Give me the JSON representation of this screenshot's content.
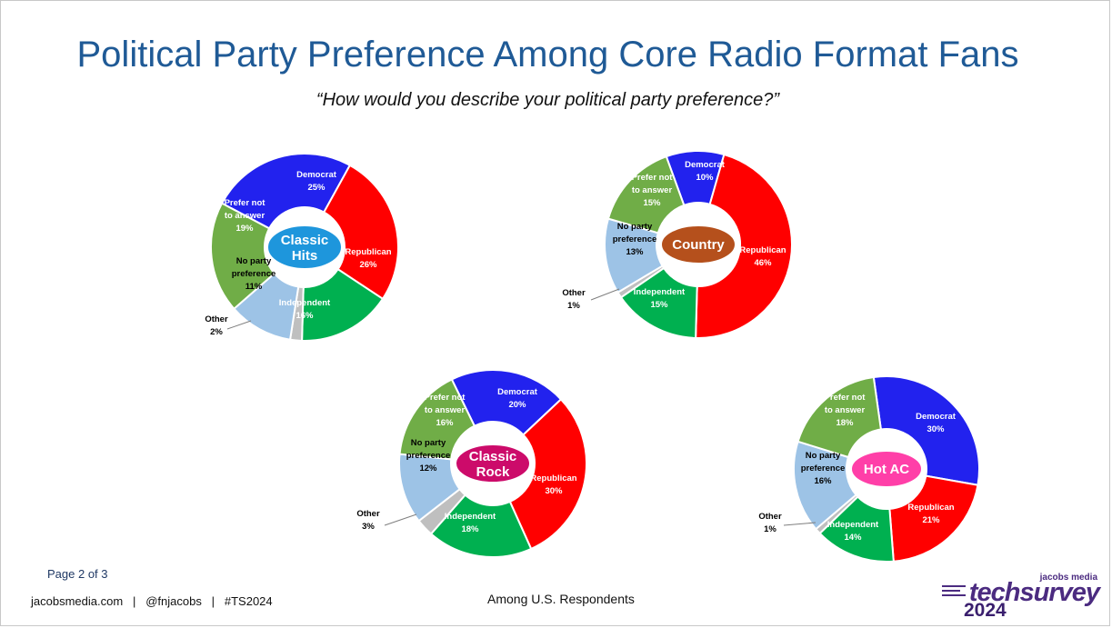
{
  "slide": {
    "title": "Political Party Preference Among Core Radio Format Fans",
    "subtitle": "“How would you describe your political party preference?”",
    "page_number": "Page 2 of 3",
    "footer_left": "jacobsmedia.com   |   @fnjacobs   |   #TS2024",
    "footer_center": "Among U.S. Respondents"
  },
  "logo": {
    "top_text": "jacobs media",
    "main_text": "techsurvey",
    "year_text": "2024"
  },
  "category_colors": {
    "Democrat": "#2222ee",
    "Republican": "#ff0000",
    "Independent": "#00b050",
    "Other": "#bfbfbf",
    "No party preference": "#9dc3e6",
    "Prefer not to answer": "#70ad47"
  },
  "chart_data": [
    {
      "type": "pie",
      "variant": "donut",
      "center_label": "Classic Hits",
      "center_color": "#1e96dc",
      "slices": [
        {
          "label": "Democrat",
          "value": 25,
          "pct_label": "25%"
        },
        {
          "label": "Republican",
          "value": 26,
          "pct_label": "26%"
        },
        {
          "label": "Independent",
          "value": 16,
          "pct_label": "16%"
        },
        {
          "label": "Other",
          "value": 2,
          "pct_label": "2%"
        },
        {
          "label": "No party preference",
          "value": 11,
          "pct_label": "11%"
        },
        {
          "label": "Prefer not to answer",
          "value": 19,
          "pct_label": "19%"
        }
      ]
    },
    {
      "type": "pie",
      "variant": "donut",
      "center_label": "Country",
      "center_color": "#b5501c",
      "slices": [
        {
          "label": "Democrat",
          "value": 10,
          "pct_label": "10%"
        },
        {
          "label": "Republican",
          "value": 46,
          "pct_label": "46%"
        },
        {
          "label": "Independent",
          "value": 15,
          "pct_label": "15%"
        },
        {
          "label": "Other",
          "value": 1,
          "pct_label": "1%"
        },
        {
          "label": "No party preference",
          "value": 13,
          "pct_label": "13%"
        },
        {
          "label": "Prefer not to answer",
          "value": 15,
          "pct_label": "15%"
        }
      ]
    },
    {
      "type": "pie",
      "variant": "donut",
      "center_label": "Classic Rock",
      "center_color": "#cc0b6a",
      "slices": [
        {
          "label": "Democrat",
          "value": 20,
          "pct_label": "20%"
        },
        {
          "label": "Republican",
          "value": 30,
          "pct_label": "30%"
        },
        {
          "label": "Independent",
          "value": 18,
          "pct_label": "18%"
        },
        {
          "label": "Other",
          "value": 3,
          "pct_label": "3%"
        },
        {
          "label": "No party preference",
          "value": 12,
          "pct_label": "12%"
        },
        {
          "label": "Prefer not to answer",
          "value": 16,
          "pct_label": "16%"
        }
      ]
    },
    {
      "type": "pie",
      "variant": "donut",
      "center_label": "Hot AC",
      "center_color": "#ff3fa8",
      "slices": [
        {
          "label": "Democrat",
          "value": 30,
          "pct_label": "30%"
        },
        {
          "label": "Republican",
          "value": 21,
          "pct_label": "21%"
        },
        {
          "label": "Independent",
          "value": 14,
          "pct_label": "14%"
        },
        {
          "label": "Other",
          "value": 1,
          "pct_label": "1%"
        },
        {
          "label": "No party preference",
          "value": 16,
          "pct_label": "16%"
        },
        {
          "label": "Prefer not to answer",
          "value": 18,
          "pct_label": "18%"
        }
      ]
    }
  ]
}
